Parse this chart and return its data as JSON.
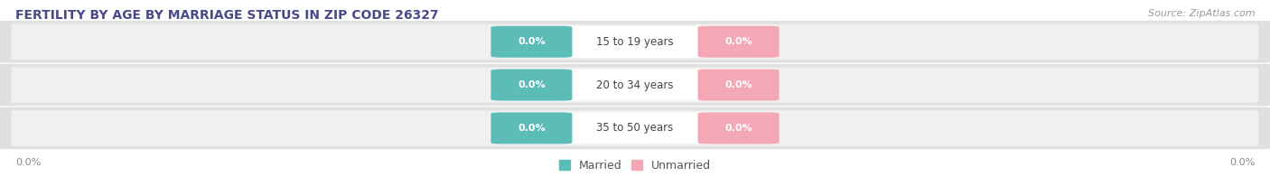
{
  "title_display": "FERTILITY BY AGE BY MARRIAGE STATUS IN ZIP CODE 26327",
  "source_text": "Source: ZipAtlas.com",
  "categories": [
    "15 to 19 years",
    "20 to 34 years",
    "35 to 50 years"
  ],
  "married_values": [
    0.0,
    0.0,
    0.0
  ],
  "unmarried_values": [
    0.0,
    0.0,
    0.0
  ],
  "married_color": "#5BBCB8",
  "unmarried_color": "#F4A7B5",
  "row_bg_color": "#E0E0E0",
  "x_left_label": "0.0%",
  "x_right_label": "0.0%",
  "title_fontsize": 10,
  "source_fontsize": 8,
  "label_fontsize": 8,
  "category_fontsize": 8.5,
  "axis_fontsize": 8,
  "legend_fontsize": 9,
  "figsize": [
    14.06,
    1.96
  ],
  "dpi": 100,
  "background_color": "#FFFFFF"
}
